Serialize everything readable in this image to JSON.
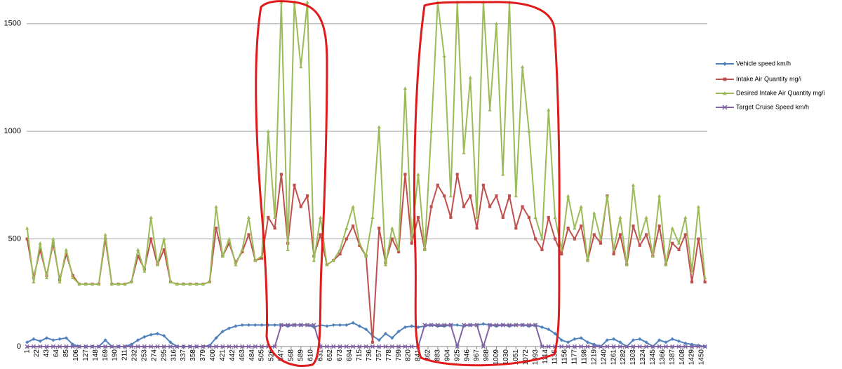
{
  "chart_data": {
    "type": "line",
    "x": [
      1,
      15,
      29,
      43,
      57,
      71,
      85,
      99,
      113,
      127,
      141,
      155,
      169,
      183,
      197,
      211,
      225,
      239,
      253,
      267,
      281,
      295,
      309,
      323,
      337,
      351,
      365,
      379,
      393,
      407,
      421,
      435,
      449,
      463,
      477,
      491,
      505,
      519,
      533,
      547,
      561,
      575,
      589,
      603,
      617,
      631,
      645,
      659,
      673,
      687,
      701,
      715,
      729,
      743,
      757,
      771,
      785,
      799,
      813,
      827,
      841,
      855,
      869,
      883,
      897,
      911,
      925,
      939,
      953,
      967,
      981,
      995,
      1009,
      1023,
      1037,
      1051,
      1065,
      1079,
      1093,
      1107,
      1121,
      1135,
      1149,
      1163,
      1177,
      1191,
      1205,
      1219,
      1233,
      1247,
      1261,
      1275,
      1289,
      1303,
      1317,
      1331,
      1345,
      1359,
      1373,
      1387,
      1401,
      1415,
      1429,
      1443,
      1457
    ],
    "series": [
      {
        "name": "Vehicle speed km/h",
        "color": "#4f81bd",
        "marker": "diamond",
        "values": [
          20,
          35,
          25,
          40,
          30,
          35,
          40,
          10,
          0,
          0,
          0,
          0,
          30,
          0,
          0,
          0,
          10,
          30,
          45,
          55,
          60,
          50,
          20,
          0,
          0,
          0,
          0,
          0,
          5,
          40,
          70,
          85,
          95,
          100,
          100,
          100,
          100,
          100,
          100,
          100,
          95,
          100,
          100,
          100,
          90,
          100,
          95,
          100,
          100,
          100,
          110,
          95,
          80,
          50,
          30,
          60,
          40,
          70,
          90,
          95,
          90,
          95,
          100,
          95,
          95,
          100,
          100,
          95,
          100,
          100,
          105,
          100,
          95,
          100,
          95,
          100,
          100,
          95,
          100,
          90,
          80,
          60,
          30,
          20,
          35,
          40,
          20,
          10,
          0,
          30,
          35,
          20,
          0,
          30,
          35,
          20,
          0,
          30,
          20,
          35,
          25,
          15,
          10,
          5,
          0
        ]
      },
      {
        "name": "Intake Air Quantity  mg/i",
        "color": "#c0504d",
        "marker": "square",
        "values": [
          500,
          320,
          450,
          330,
          480,
          310,
          430,
          330,
          290,
          290,
          290,
          290,
          500,
          290,
          290,
          290,
          300,
          420,
          360,
          500,
          380,
          450,
          300,
          290,
          290,
          290,
          290,
          290,
          300,
          550,
          420,
          480,
          390,
          440,
          520,
          400,
          410,
          600,
          550,
          800,
          480,
          750,
          650,
          700,
          420,
          520,
          380,
          400,
          430,
          500,
          560,
          470,
          420,
          20,
          550,
          390,
          500,
          440,
          800,
          480,
          600,
          450,
          650,
          750,
          700,
          600,
          800,
          650,
          700,
          550,
          750,
          650,
          700,
          600,
          700,
          550,
          650,
          600,
          500,
          450,
          600,
          500,
          430,
          550,
          500,
          560,
          400,
          520,
          480,
          700,
          430,
          520,
          380,
          560,
          470,
          520,
          420,
          560,
          380,
          480,
          450,
          520,
          300,
          500,
          300
        ]
      },
      {
        "name": "Desired Intake Air Quantity  mg/i",
        "color": "#9bbb59",
        "marker": "triangle",
        "values": [
          550,
          300,
          480,
          320,
          500,
          300,
          450,
          320,
          290,
          290,
          290,
          290,
          520,
          290,
          290,
          290,
          300,
          450,
          350,
          600,
          380,
          500,
          300,
          290,
          290,
          290,
          290,
          290,
          300,
          650,
          420,
          500,
          380,
          450,
          600,
          400,
          420,
          1000,
          600,
          1600,
          450,
          1600,
          1300,
          1600,
          400,
          600,
          380,
          400,
          450,
          550,
          650,
          480,
          420,
          600,
          1020,
          380,
          550,
          450,
          1200,
          500,
          800,
          450,
          1000,
          1600,
          1350,
          700,
          1600,
          900,
          1250,
          600,
          1600,
          1100,
          1500,
          800,
          1600,
          700,
          1300,
          1000,
          600,
          500,
          1100,
          600,
          450,
          700,
          550,
          650,
          400,
          620,
          500,
          700,
          450,
          600,
          380,
          750,
          500,
          600,
          420,
          700,
          380,
          550,
          480,
          600,
          350,
          650,
          320
        ]
      },
      {
        "name": "Target Cruise Speed km/h",
        "color": "#8064a2",
        "marker": "x",
        "values": [
          0,
          0,
          0,
          0,
          0,
          0,
          0,
          0,
          0,
          0,
          0,
          0,
          0,
          0,
          0,
          0,
          0,
          0,
          0,
          0,
          0,
          0,
          0,
          0,
          0,
          0,
          0,
          0,
          0,
          0,
          0,
          0,
          0,
          0,
          0,
          0,
          0,
          0,
          0,
          100,
          100,
          100,
          100,
          100,
          100,
          0,
          0,
          0,
          0,
          0,
          0,
          0,
          0,
          0,
          0,
          0,
          0,
          0,
          0,
          0,
          0,
          100,
          100,
          100,
          100,
          100,
          0,
          100,
          100,
          100,
          0,
          100,
          100,
          100,
          100,
          100,
          100,
          100,
          100,
          0,
          0,
          0,
          0,
          0,
          0,
          0,
          0,
          0,
          0,
          0,
          0,
          0,
          0,
          0,
          0,
          0,
          0,
          0,
          0,
          0,
          0,
          0,
          0,
          0,
          0
        ]
      }
    ],
    "xlim": [
      0,
      1462
    ],
    "ylim": [
      0,
      1610
    ],
    "xticks": [
      1,
      22,
      43,
      64,
      85,
      106,
      127,
      148,
      169,
      190,
      211,
      232,
      253,
      274,
      295,
      316,
      337,
      358,
      379,
      400,
      421,
      442,
      463,
      484,
      505,
      526,
      547,
      568,
      589,
      610,
      631,
      652,
      673,
      694,
      715,
      736,
      757,
      778,
      799,
      820,
      841,
      862,
      883,
      904,
      925,
      946,
      967,
      988,
      1009,
      1030,
      1051,
      1072,
      1093,
      1114,
      1135,
      1156,
      1177,
      1198,
      1219,
      1240,
      1261,
      1282,
      1303,
      1324,
      1345,
      1366,
      1387,
      1408,
      1429,
      1450
    ],
    "yticks": [
      0,
      500,
      1000,
      1500
    ],
    "grid": true,
    "legend": "right"
  }
}
